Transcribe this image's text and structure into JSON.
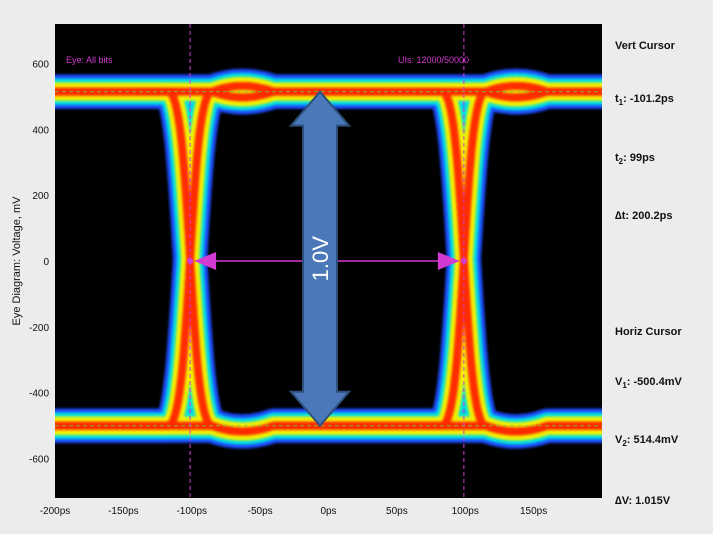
{
  "chart_data": {
    "type": "eye-diagram",
    "ylabel": "Eye Diagram: Voltage, mV",
    "xlim": [
      -200,
      200
    ],
    "ylim": [
      -720,
      720
    ],
    "x_ticks": [
      -200,
      -150,
      -100,
      -50,
      0,
      50,
      100,
      150
    ],
    "x_tick_labels": [
      "-200ps",
      "-150ps",
      "-100ps",
      "-50ps",
      "0ps",
      "50ps",
      "100ps",
      "150ps"
    ],
    "y_ticks": [
      600,
      400,
      200,
      0,
      -200,
      -400,
      -600
    ],
    "y_tick_labels": [
      "600",
      "400",
      "200",
      "0",
      "-200",
      "-400",
      "-600"
    ],
    "eye_high_mv": 514.4,
    "eye_low_mv": -500.4,
    "crossing_times_ps": [
      -101.2,
      99
    ],
    "cursor_times_ps": [
      -101.2,
      99
    ],
    "h_cursor_mv": [
      -500.4,
      514.4
    ],
    "arrow_label": "1.0V",
    "annotations": [
      "Eye: All bits",
      "UIs: 12000/50000"
    ]
  },
  "readouts": {
    "vert_title": "Vert Cursor",
    "t1_label": "t",
    "t1_sub": "1",
    "t1_value": ": -101.2ps",
    "t2_label": "t",
    "t2_sub": "2",
    "t2_value": ": 99ps",
    "dt_label": "∆t: 200.2ps",
    "horiz_title": "Horiz Cursor",
    "v1_label": "V",
    "v1_sub": "1",
    "v1_value": ": -500.4mV",
    "v2_label": "V",
    "v2_sub": "2",
    "v2_value": ": 514.4mV",
    "dv_label": "∆V: 1.015V"
  },
  "colors": {
    "background": "#000000",
    "band_outer": "#1e4cff",
    "band_mid": "#00e0e0",
    "band_inner": "#f2f200",
    "band_core": "#ff2a00",
    "cursor": "#d23ad2",
    "arrow": "#4a78b8"
  }
}
